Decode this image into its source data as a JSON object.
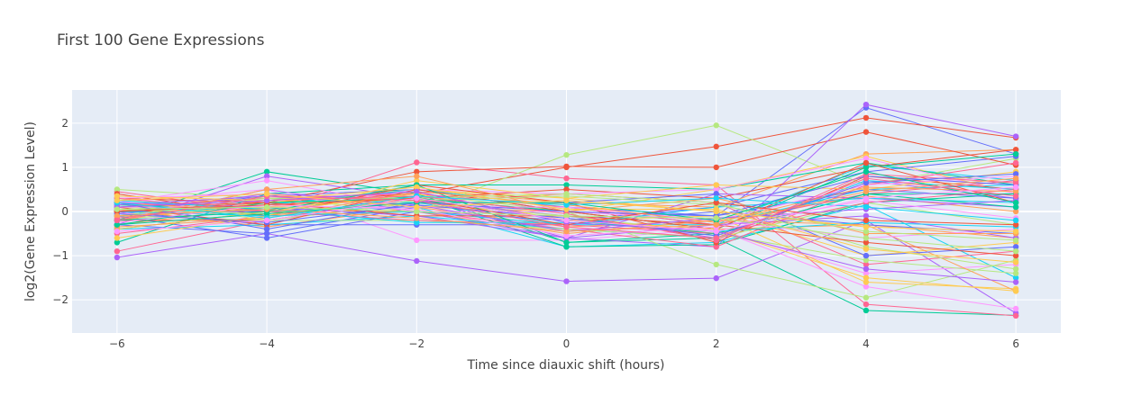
{
  "chart_data": {
    "type": "line",
    "title": "First 100 Gene Expressions",
    "xlabel": "Time since diauxic shift (hours)",
    "ylabel": "log2(Gene Expression Level)",
    "x": [
      -6,
      -4,
      -2,
      0,
      2,
      4,
      6
    ],
    "xticks": [
      "−6",
      "−4",
      "−2",
      "0",
      "2",
      "4",
      "6"
    ],
    "yticks": [
      "−2",
      "−1",
      "0",
      "1",
      "2"
    ],
    "xlim": [
      -6.6,
      6.6
    ],
    "ylim": [
      -2.75,
      2.75
    ],
    "grid": true,
    "legend": "none",
    "plot_background": "#e5ecf6",
    "colors": [
      "#636efa",
      "#EF553B",
      "#00cc96",
      "#ab63fa",
      "#FFA15A",
      "#19d3f3",
      "#FF6692",
      "#B6E880",
      "#FF97FF",
      "#FECB52"
    ],
    "series": [
      {
        "values": [
          0.0,
          0.35,
          0.5,
          0.0,
          -0.1,
          2.35,
          1.3
        ]
      },
      {
        "values": [
          0.1,
          0.2,
          0.4,
          1.0,
          1.47,
          2.12,
          1.67
        ]
      },
      {
        "values": [
          -0.2,
          0.9,
          0.4,
          -0.7,
          -0.6,
          -2.24,
          -2.35
        ]
      },
      {
        "values": [
          -1.04,
          -0.5,
          -1.12,
          -1.58,
          -1.51,
          -0.2,
          -2.3
        ]
      },
      {
        "values": [
          -0.3,
          0.1,
          0.5,
          0.2,
          0.1,
          1.3,
          1.4
        ]
      },
      {
        "values": [
          0.1,
          0.3,
          0.2,
          -0.3,
          -0.3,
          1.05,
          0.7
        ]
      },
      {
        "values": [
          0.45,
          0.0,
          1.11,
          0.75,
          0.6,
          -2.1,
          -2.36
        ]
      },
      {
        "values": [
          0.5,
          0.3,
          0.0,
          1.28,
          1.95,
          0.6,
          1.2
        ]
      },
      {
        "values": [
          0.2,
          0.5,
          -0.65,
          -0.65,
          -0.4,
          -1.4,
          -1.2
        ]
      },
      {
        "values": [
          0.0,
          0.1,
          0.1,
          0.0,
          0.5,
          1.25,
          0.4
        ]
      },
      {
        "values": [
          -0.1,
          -0.6,
          0.0,
          -0.2,
          0.1,
          0.9,
          1.25
        ]
      },
      {
        "values": [
          0.3,
          0.2,
          0.9,
          1.02,
          1.0,
          1.8,
          1.05
        ]
      },
      {
        "values": [
          -0.7,
          0.4,
          0.6,
          0.6,
          0.5,
          1.1,
          0.6
        ]
      },
      {
        "values": [
          -0.3,
          0.8,
          0.3,
          -0.6,
          -0.8,
          2.42,
          1.7
        ]
      },
      {
        "values": [
          0.2,
          -0.1,
          0.3,
          0.0,
          -0.4,
          -0.3,
          -0.6
        ]
      },
      {
        "values": [
          -0.4,
          0.0,
          0.1,
          -0.8,
          -0.7,
          0.15,
          -1.5
        ]
      },
      {
        "values": [
          -0.9,
          -0.2,
          0.2,
          0.4,
          0.2,
          -1.2,
          -0.9
        ]
      },
      {
        "values": [
          0.1,
          0.0,
          0.4,
          0.0,
          -1.2,
          -1.95,
          -1.1
        ]
      },
      {
        "values": [
          0.2,
          0.7,
          0.1,
          -0.4,
          -0.4,
          -1.7,
          -2.2
        ]
      },
      {
        "values": [
          -0.2,
          0.2,
          0.5,
          0.3,
          0.0,
          -1.0,
          -0.7
        ]
      },
      {
        "values": [
          0.0,
          -0.3,
          -0.3,
          -0.3,
          0.0,
          -0.3,
          -0.5
        ]
      },
      {
        "values": [
          -0.2,
          -0.2,
          0.3,
          0.5,
          0.3,
          1.0,
          1.4
        ]
      },
      {
        "values": [
          0.15,
          0.05,
          0.35,
          -0.8,
          -0.75,
          0.2,
          0.4
        ]
      },
      {
        "values": [
          -0.05,
          0.4,
          0.25,
          -0.1,
          -0.6,
          0.7,
          0.3
        ]
      },
      {
        "values": [
          0.05,
          -0.35,
          0.1,
          -0.35,
          -0.2,
          0.35,
          0.0
        ]
      },
      {
        "values": [
          -0.1,
          0.15,
          0.5,
          0.1,
          -0.3,
          0.5,
          0.6
        ]
      },
      {
        "values": [
          -0.5,
          -0.1,
          0.0,
          -0.4,
          -0.8,
          0.6,
          1.1
        ]
      },
      {
        "values": [
          0.3,
          -0.2,
          0.2,
          -0.1,
          -0.5,
          -1.1,
          -1.4
        ]
      },
      {
        "values": [
          -0.05,
          0.0,
          0.5,
          0.4,
          0.5,
          1.2,
          0.4
        ]
      },
      {
        "values": [
          0.1,
          0.1,
          0.3,
          -0.2,
          -0.1,
          -1.6,
          -1.75
        ]
      },
      {
        "values": [
          -0.3,
          -0.5,
          0.1,
          0.1,
          -0.1,
          0.5,
          0.3
        ]
      },
      {
        "values": [
          0.4,
          -0.1,
          0.6,
          0.2,
          -0.7,
          0.8,
          0.5
        ]
      },
      {
        "values": [
          0.0,
          0.2,
          0.3,
          0.0,
          -0.4,
          1.0,
          1.3
        ]
      },
      {
        "values": [
          -0.2,
          0.5,
          0.0,
          -0.6,
          0.4,
          0.3,
          0.1
        ]
      },
      {
        "values": [
          0.2,
          0.0,
          0.0,
          -0.5,
          -0.2,
          -0.3,
          -1.8
        ]
      },
      {
        "values": [
          -0.4,
          -0.3,
          -0.1,
          -0.4,
          -0.6,
          0.7,
          0.5
        ]
      },
      {
        "values": [
          0.1,
          0.3,
          0.4,
          0.1,
          -0.3,
          0.4,
          0.7
        ]
      },
      {
        "values": [
          -0.1,
          -0.2,
          -0.2,
          -0.4,
          -0.6,
          0.2,
          -0.3
        ]
      },
      {
        "values": [
          0.3,
          0.4,
          0.0,
          0.0,
          -0.2,
          -0.6,
          -0.4
        ]
      },
      {
        "values": [
          -0.6,
          -0.1,
          0.7,
          0.3,
          0.6,
          0.5,
          0.9
        ]
      },
      {
        "values": [
          0.0,
          0.0,
          0.2,
          0.2,
          0.4,
          -1.0,
          -0.8
        ]
      },
      {
        "values": [
          0.1,
          -0.3,
          0.5,
          0.0,
          -0.4,
          1.1,
          0.2
        ]
      },
      {
        "values": [
          -0.3,
          0.2,
          0.3,
          -0.2,
          -0.5,
          0.4,
          0.4
        ]
      },
      {
        "values": [
          0.2,
          0.1,
          -0.1,
          -0.6,
          -0.3,
          -0.1,
          -0.6
        ]
      },
      {
        "values": [
          -0.2,
          0.5,
          0.8,
          0.0,
          0.3,
          -0.5,
          -0.5
        ]
      },
      {
        "values": [
          0.0,
          -0.1,
          0.0,
          -0.3,
          0.1,
          0.3,
          0.2
        ]
      },
      {
        "values": [
          0.3,
          0.0,
          -0.2,
          -0.3,
          -0.5,
          0.2,
          0.5
        ]
      },
      {
        "values": [
          -0.1,
          0.3,
          0.3,
          0.4,
          0.2,
          -0.8,
          -1.3
        ]
      },
      {
        "values": [
          0.1,
          0.1,
          0.1,
          0.1,
          -0.2,
          0.6,
          0.8
        ]
      },
      {
        "values": [
          -0.4,
          0.0,
          0.4,
          -0.2,
          -0.4,
          -1.5,
          -1.8
        ]
      },
      {
        "values": [
          0.2,
          -0.4,
          0.2,
          0.0,
          -0.1,
          0.8,
          0.6
        ]
      },
      {
        "values": [
          0.0,
          0.2,
          -0.1,
          -0.1,
          -0.3,
          -0.7,
          -1.0
        ]
      },
      {
        "values": [
          -0.2,
          0.0,
          0.6,
          -0.7,
          -0.5,
          0.4,
          0.1
        ]
      },
      {
        "values": [
          0.15,
          0.35,
          0.15,
          -0.45,
          -0.15,
          0.05,
          0.25
        ]
      },
      {
        "values": [
          -0.35,
          -0.15,
          0.45,
          0.15,
          -0.25,
          0.55,
          0.45
        ]
      },
      {
        "values": [
          0.25,
          0.05,
          -0.25,
          -0.25,
          -0.45,
          -0.25,
          -0.35
        ]
      },
      {
        "values": [
          -0.15,
          0.25,
          0.35,
          -0.05,
          -0.65,
          0.85,
          0.65
        ]
      },
      {
        "values": [
          0.05,
          -0.05,
          0.25,
          0.35,
          0.15,
          -0.45,
          -0.65
        ]
      },
      {
        "values": [
          -0.25,
          0.15,
          0.05,
          -0.55,
          -0.35,
          0.25,
          -0.15
        ]
      },
      {
        "values": [
          0.35,
          0.25,
          0.55,
          0.05,
          0.05,
          -0.85,
          -1.15
        ]
      },
      {
        "values": [
          -0.05,
          -0.25,
          0.15,
          -0.15,
          -0.55,
          0.65,
          0.85
        ]
      },
      {
        "values": [
          0.0,
          0.15,
          0.3,
          -0.3,
          0.2,
          -0.2,
          -0.3
        ]
      },
      {
        "values": [
          -0.3,
          -0.05,
          0.2,
          0.2,
          -0.2,
          0.9,
          0.2
        ]
      },
      {
        "values": [
          0.1,
          0.25,
          0.45,
          -0.25,
          -0.45,
          -1.3,
          -1.6
        ]
      },
      {
        "values": [
          -0.1,
          0.05,
          -0.15,
          -0.45,
          -0.3,
          0.45,
          0.75
        ]
      },
      {
        "values": [
          0.2,
          -0.15,
          0.35,
          0.15,
          0.3,
          0.1,
          -0.2
        ]
      },
      {
        "values": [
          -0.2,
          0.35,
          0.25,
          -0.35,
          -0.6,
          0.75,
          0.35
        ]
      },
      {
        "values": [
          0.05,
          0.1,
          0.0,
          -0.1,
          -0.15,
          -0.6,
          -0.9
        ]
      },
      {
        "values": [
          -0.45,
          -0.2,
          0.3,
          -0.2,
          -0.45,
          0.3,
          0.55
        ]
      },
      {
        "values": [
          0.25,
          0.4,
          0.1,
          0.25,
          0.0,
          -0.35,
          -0.45
        ]
      }
    ]
  }
}
